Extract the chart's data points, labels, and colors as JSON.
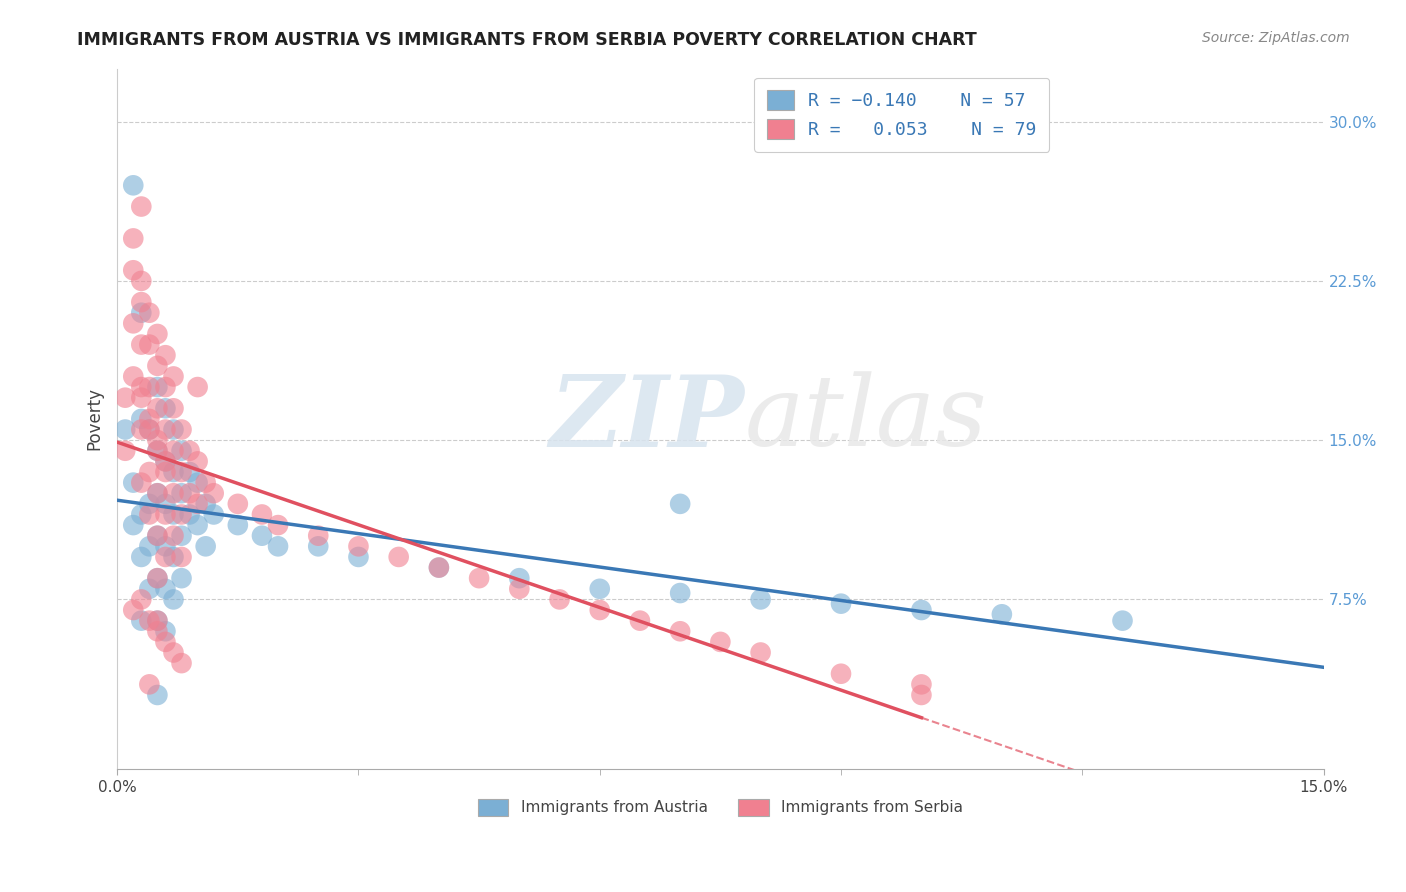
{
  "title": "IMMIGRANTS FROM AUSTRIA VS IMMIGRANTS FROM SERBIA POVERTY CORRELATION CHART",
  "source": "Source: ZipAtlas.com",
  "ylabel": "Poverty",
  "yticks": [
    "7.5%",
    "15.0%",
    "22.5%",
    "30.0%"
  ],
  "ytick_vals": [
    0.075,
    0.15,
    0.225,
    0.3
  ],
  "xlim": [
    0.0,
    0.15
  ],
  "ylim": [
    -0.005,
    0.325
  ],
  "austria_color": "#7bafd4",
  "austria_line_color": "#3a78b5",
  "serbia_color": "#f08090",
  "serbia_line_color": "#e05060",
  "austria_R": -0.14,
  "austria_N": 57,
  "serbia_R": 0.053,
  "serbia_N": 79,
  "legend_label_austria": "Immigrants from Austria",
  "legend_label_serbia": "Immigrants from Serbia",
  "background_color": "#ffffff",
  "watermark_zip": "ZIP",
  "watermark_atlas": "atlas",
  "title_fontsize": 12.5,
  "tick_fontsize": 11,
  "label_fontsize": 12,
  "source_fontsize": 10,
  "austria_x": [
    0.001,
    0.002,
    0.002,
    0.003,
    0.003,
    0.003,
    0.003,
    0.004,
    0.004,
    0.004,
    0.004,
    0.005,
    0.005,
    0.005,
    0.005,
    0.005,
    0.005,
    0.005,
    0.006,
    0.006,
    0.006,
    0.006,
    0.006,
    0.006,
    0.007,
    0.007,
    0.007,
    0.007,
    0.007,
    0.008,
    0.008,
    0.008,
    0.008,
    0.009,
    0.009,
    0.01,
    0.01,
    0.011,
    0.011,
    0.012,
    0.015,
    0.018,
    0.02,
    0.025,
    0.03,
    0.04,
    0.05,
    0.06,
    0.07,
    0.08,
    0.09,
    0.1,
    0.11,
    0.125,
    0.002,
    0.003,
    0.07
  ],
  "austria_y": [
    0.155,
    0.13,
    0.11,
    0.16,
    0.115,
    0.095,
    0.065,
    0.155,
    0.12,
    0.1,
    0.08,
    0.175,
    0.145,
    0.125,
    0.105,
    0.085,
    0.065,
    0.03,
    0.165,
    0.14,
    0.12,
    0.1,
    0.08,
    0.06,
    0.155,
    0.135,
    0.115,
    0.095,
    0.075,
    0.145,
    0.125,
    0.105,
    0.085,
    0.135,
    0.115,
    0.13,
    0.11,
    0.12,
    0.1,
    0.115,
    0.11,
    0.105,
    0.1,
    0.1,
    0.095,
    0.09,
    0.085,
    0.08,
    0.078,
    0.075,
    0.073,
    0.07,
    0.068,
    0.065,
    0.27,
    0.21,
    0.12
  ],
  "serbia_x": [
    0.001,
    0.001,
    0.002,
    0.002,
    0.002,
    0.003,
    0.003,
    0.003,
    0.003,
    0.003,
    0.003,
    0.004,
    0.004,
    0.004,
    0.004,
    0.004,
    0.005,
    0.005,
    0.005,
    0.005,
    0.005,
    0.005,
    0.005,
    0.006,
    0.006,
    0.006,
    0.006,
    0.006,
    0.007,
    0.007,
    0.007,
    0.007,
    0.008,
    0.008,
    0.008,
    0.008,
    0.009,
    0.009,
    0.01,
    0.01,
    0.011,
    0.012,
    0.015,
    0.018,
    0.02,
    0.025,
    0.03,
    0.035,
    0.04,
    0.045,
    0.05,
    0.055,
    0.06,
    0.065,
    0.07,
    0.075,
    0.08,
    0.09,
    0.1,
    0.002,
    0.003,
    0.004,
    0.005,
    0.006,
    0.007,
    0.003,
    0.004,
    0.005,
    0.006,
    0.01,
    0.003,
    0.002,
    0.004,
    0.005,
    0.006,
    0.007,
    0.008,
    0.004,
    0.1
  ],
  "serbia_y": [
    0.145,
    0.17,
    0.205,
    0.23,
    0.18,
    0.26,
    0.215,
    0.195,
    0.175,
    0.155,
    0.13,
    0.195,
    0.175,
    0.155,
    0.135,
    0.115,
    0.185,
    0.165,
    0.145,
    0.125,
    0.105,
    0.085,
    0.065,
    0.175,
    0.155,
    0.135,
    0.115,
    0.095,
    0.165,
    0.145,
    0.125,
    0.105,
    0.155,
    0.135,
    0.115,
    0.095,
    0.145,
    0.125,
    0.14,
    0.12,
    0.13,
    0.125,
    0.12,
    0.115,
    0.11,
    0.105,
    0.1,
    0.095,
    0.09,
    0.085,
    0.08,
    0.075,
    0.07,
    0.065,
    0.06,
    0.055,
    0.05,
    0.04,
    0.035,
    0.245,
    0.225,
    0.21,
    0.2,
    0.19,
    0.18,
    0.17,
    0.16,
    0.15,
    0.14,
    0.175,
    0.075,
    0.07,
    0.065,
    0.06,
    0.055,
    0.05,
    0.045,
    0.035,
    0.03
  ]
}
